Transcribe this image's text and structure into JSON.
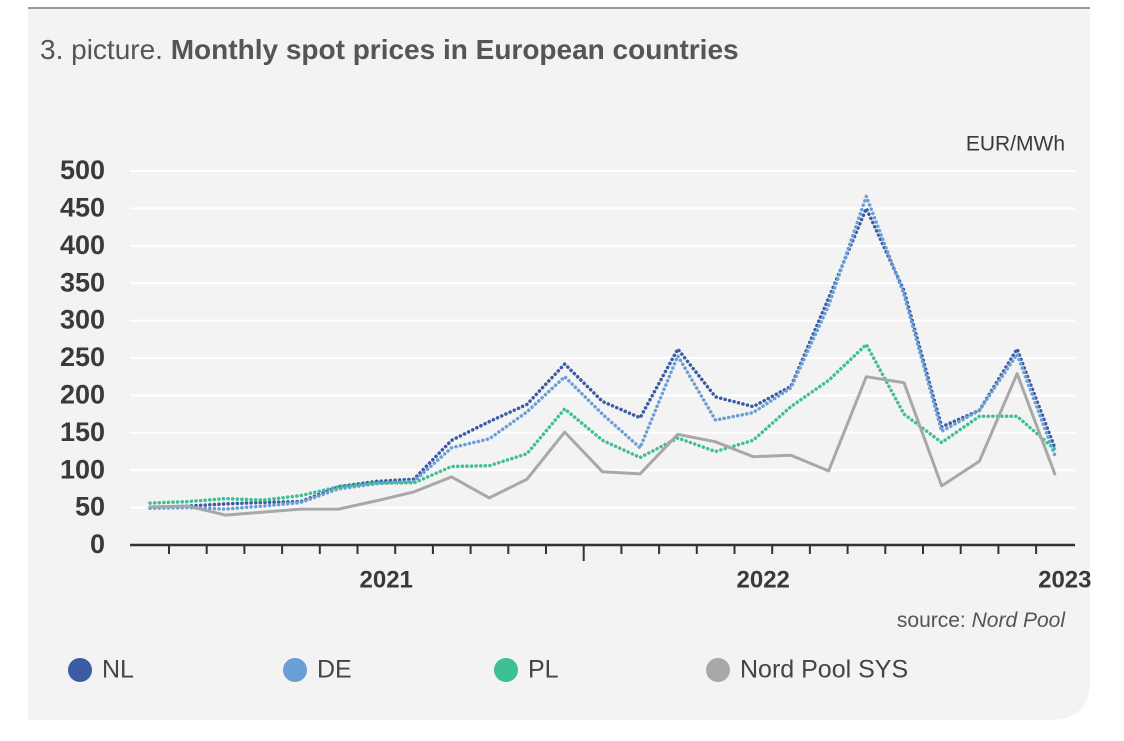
{
  "chart_data": {
    "type": "line",
    "title_prefix": "3. picture.",
    "title": "Monthly spot prices in European countries",
    "y_label": "EUR/MWh",
    "source_label": "source:",
    "source": "Nord Pool",
    "categories": [
      null,
      null,
      null,
      null,
      null,
      null,
      "2021",
      null,
      null,
      null,
      null,
      null,
      null,
      null,
      null,
      null,
      "2022",
      null,
      null,
      null,
      null,
      null,
      null,
      null,
      "2023"
    ],
    "ylim": [
      0,
      500
    ],
    "yticks": [
      0,
      50,
      100,
      150,
      200,
      250,
      300,
      350,
      400,
      450,
      500
    ],
    "grid": true,
    "series": [
      {
        "name": "NL",
        "color": "#3b5ba5",
        "style": "dotted",
        "values": [
          50,
          52,
          55,
          57,
          58,
          78,
          85,
          88,
          140,
          165,
          188,
          242,
          192,
          170,
          262,
          198,
          185,
          212,
          330,
          450,
          340,
          158,
          180,
          262,
          130
        ]
      },
      {
        "name": "DE",
        "color": "#6a9fd6",
        "style": "dotted",
        "values": [
          49,
          50,
          48,
          52,
          57,
          75,
          82,
          85,
          130,
          142,
          178,
          225,
          175,
          130,
          253,
          167,
          177,
          210,
          320,
          466,
          335,
          152,
          180,
          255,
          120
        ]
      },
      {
        "name": "PL",
        "color": "#3fbf94",
        "style": "dotted",
        "values": [
          56,
          58,
          62,
          60,
          66,
          78,
          83,
          83,
          105,
          106,
          122,
          182,
          140,
          117,
          143,
          125,
          140,
          185,
          220,
          268,
          175,
          137,
          172,
          172,
          128
        ]
      },
      {
        "name": "Nord Pool SYS",
        "color": "#a8a8a8",
        "style": "solid",
        "values": [
          51,
          52,
          40,
          44,
          48,
          48,
          59,
          71,
          91,
          63,
          88,
          151,
          98,
          95,
          148,
          138,
          118,
          120,
          99,
          225,
          217,
          79,
          112,
          229,
          95
        ]
      }
    ]
  }
}
